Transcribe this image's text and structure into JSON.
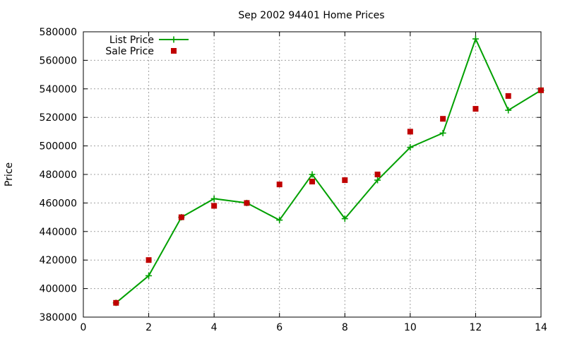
{
  "chart_data": {
    "type": "line",
    "title": "Sep 2002 94401 Home Prices",
    "xlabel": "",
    "ylabel": "Price",
    "xlim": [
      0,
      14
    ],
    "ylim": [
      380000,
      580000
    ],
    "xticks": [
      0,
      2,
      4,
      6,
      8,
      10,
      12,
      14
    ],
    "yticks": [
      380000,
      400000,
      420000,
      440000,
      460000,
      480000,
      500000,
      520000,
      540000,
      560000,
      580000
    ],
    "grid": true,
    "legend_position": "top-left",
    "series": [
      {
        "name": "List Price",
        "style": "lines+points",
        "marker": "plus",
        "color": "#00a000",
        "x": [
          1,
          2,
          3,
          4,
          5,
          6,
          7,
          8,
          9,
          10,
          11,
          12,
          13,
          14
        ],
        "y": [
          390000,
          409000,
          450000,
          463000,
          460000,
          448000,
          480000,
          449000,
          476000,
          499000,
          509000,
          575000,
          525000,
          539000
        ]
      },
      {
        "name": "Sale Price",
        "style": "points",
        "marker": "square",
        "color": "#c00000",
        "x": [
          1,
          2,
          3,
          4,
          5,
          6,
          7,
          8,
          9,
          10,
          11,
          12,
          13,
          14
        ],
        "y": [
          390000,
          420000,
          450000,
          458000,
          460000,
          473000,
          475000,
          476000,
          480000,
          510000,
          519000,
          526000,
          535000,
          539000
        ]
      }
    ]
  }
}
